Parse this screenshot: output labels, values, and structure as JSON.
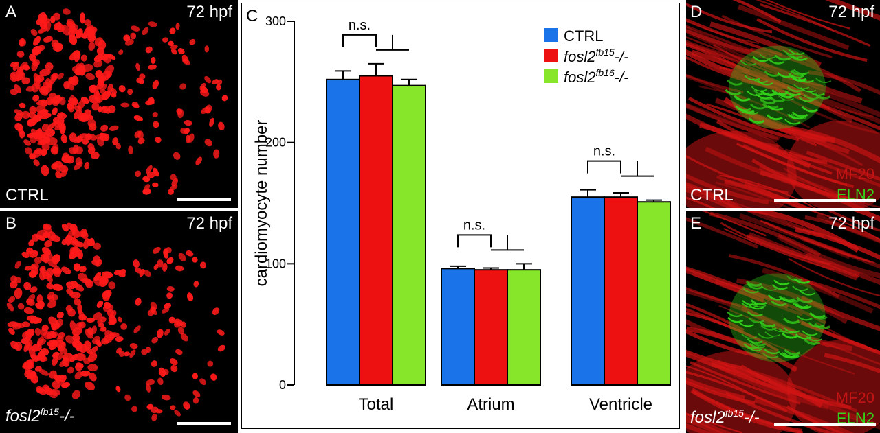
{
  "panels": {
    "a": {
      "letter": "A",
      "time": "72 hpf",
      "genotype": "CTRL"
    },
    "b": {
      "letter": "B",
      "time": "72 hpf",
      "genotype_base": "fosl2",
      "genotype_sup": "fb15",
      "genotype_suffix": "-/-"
    },
    "d": {
      "letter": "D",
      "time": "72 hpf",
      "genotype": "CTRL",
      "stain1": "MF20",
      "stain2": "ELN2"
    },
    "e": {
      "letter": "E",
      "time": "72 hpf",
      "genotype_base": "fosl2",
      "genotype_sup": "fb15",
      "genotype_suffix": "-/-",
      "stain1": "MF20",
      "stain2": "ELN2"
    }
  },
  "chart_data": {
    "panel_letter": "C",
    "type": "bar",
    "categories": [
      "Total",
      "Atrium",
      "Ventricle"
    ],
    "ylabel": "cardiomyocyte number",
    "ylim": [
      0,
      300
    ],
    "yticks": [
      0,
      100,
      200,
      300
    ],
    "series": [
      {
        "name": "CTRL",
        "name_base": "CTRL",
        "name_sup": "",
        "name_suffix": "",
        "italic": false,
        "color": "#1a73e8",
        "values": [
          252,
          96,
          155
        ],
        "errors": [
          7,
          2,
          6
        ]
      },
      {
        "name": "fosl2fb15-/-",
        "name_base": "fosl2",
        "name_sup": "fb15",
        "name_suffix": "-/-",
        "italic": true,
        "color": "#ee1111",
        "values": [
          255,
          95,
          155
        ],
        "errors": [
          10,
          1.5,
          3.5
        ]
      },
      {
        "name": "fosl2fb16-/-",
        "name_base": "fosl2",
        "name_sup": "fb16",
        "name_suffix": "-/-",
        "italic": true,
        "color": "#88e62a",
        "values": [
          247,
          95,
          151
        ],
        "errors": [
          5,
          5,
          1.5
        ]
      }
    ],
    "annotations": [
      "n.s.",
      "n.s.",
      "n.s."
    ],
    "legend_position": "top-right",
    "grid": false
  },
  "colors": {
    "nuclei": "#ff1a1a",
    "muscle": "#d41414",
    "elastin": "#33d41a"
  }
}
